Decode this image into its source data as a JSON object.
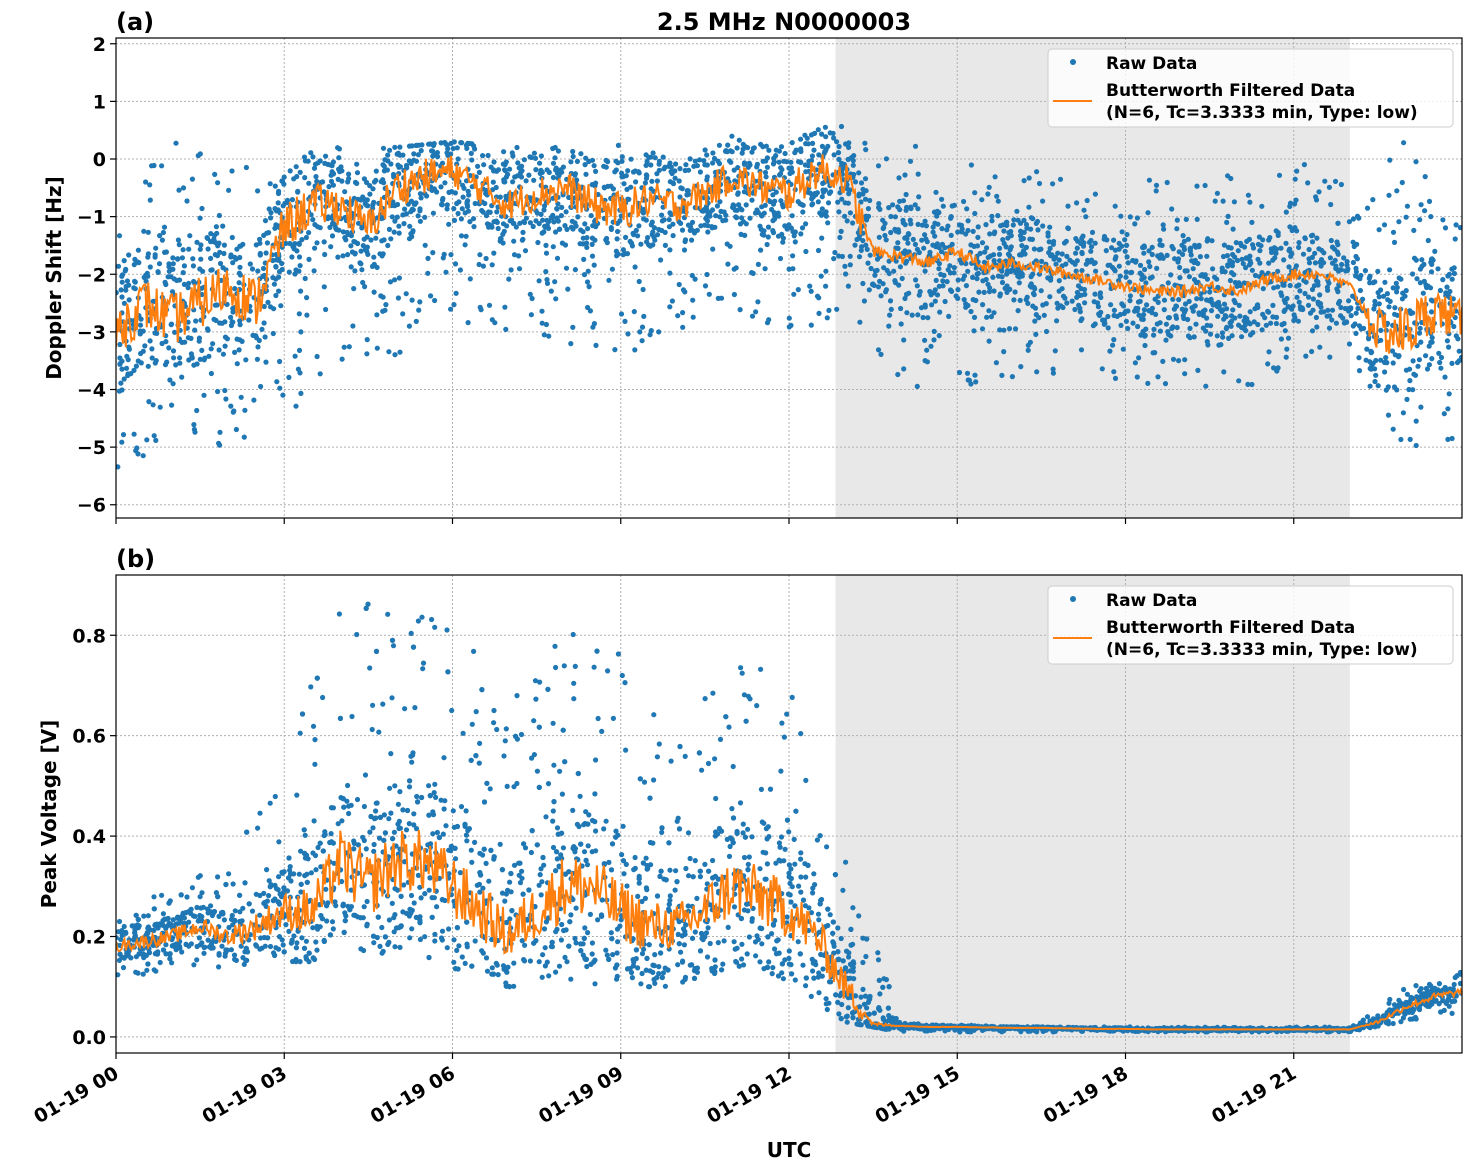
{
  "title": "2.5 MHz N0000003",
  "colors": {
    "raw": "#1f77b4",
    "filtered": "#ff7f0e",
    "shade": "#e8e8e8"
  },
  "chart_data": [
    {
      "type": "scatter",
      "panel_label": "(a)",
      "ylabel": "Doppler Shift [Hz]",
      "xlabel": "",
      "xlim_hours": [
        0,
        24
      ],
      "ylim": [
        -6.23,
        2.1
      ],
      "yticks": [
        2,
        1,
        0,
        -1,
        -2,
        -3,
        -4,
        -5,
        -6
      ],
      "ytick_labels": [
        "2",
        "1",
        "0",
        "−1",
        "−2",
        "−3",
        "−4",
        "−5",
        "−6"
      ],
      "grid": true,
      "shaded_span_hours": [
        12.83,
        22.0
      ],
      "legend": {
        "placement": "top-right",
        "raw": "Raw Data",
        "filtered_line1": "Butterworth Filtered Data",
        "filtered_line2": "(N=6, Tc=3.3333 min, Type: low)"
      },
      "filtered": {
        "t_hours_step": 0.5,
        "values": [
          -3,
          -2.5,
          -2.8,
          -2.5,
          -2.2,
          -2.5,
          -1.2,
          -0.8,
          -0.8,
          -1.2,
          -0.5,
          -0.3,
          -0.2,
          -0.5,
          -0.8,
          -0.6,
          -0.5,
          -0.8,
          -0.9,
          -0.7,
          -0.8,
          -0.6,
          -0.3,
          -0.5,
          -0.6,
          -0.2,
          -0.3,
          -1.6,
          -1.7,
          -1.8,
          -1.6,
          -1.9,
          -1.8,
          -1.9,
          -2.0,
          -2.1,
          -2.2,
          -2.3,
          -2.3,
          -2.2,
          -2.3,
          -2.1,
          -2.0,
          -2.0,
          -2.2,
          -3.0,
          -3.0,
          -2.6,
          -2.8
        ]
      },
      "raw_envelope": {
        "t_hours_step": 1,
        "min": [
          -5.5,
          -4.8,
          -5,
          -4.5,
          -3.5,
          -3.5,
          -2.8,
          -3,
          -3.2,
          -3.5,
          -3,
          -2.8,
          -3.3,
          -2.6,
          -4,
          -4,
          -3.8,
          -3.8,
          -3.9,
          -4,
          -4,
          -3.7,
          -3.5,
          -5.2,
          -4.8
        ],
        "max": [
          -0.5,
          0.3,
          0.1,
          0,
          0.3,
          0.2,
          0.3,
          0.2,
          0.2,
          0.3,
          0.2,
          0.4,
          0.3,
          0.7,
          0.4,
          0.2,
          0,
          -0.2,
          -0.3,
          -0.3,
          -0.2,
          0,
          -0.5,
          0.5,
          -1.2
        ]
      }
    },
    {
      "type": "scatter",
      "panel_label": "(b)",
      "ylabel": "Peak Voltage [V]",
      "xlabel": "UTC",
      "xlim_hours": [
        0,
        24
      ],
      "ylim": [
        -0.032,
        0.92
      ],
      "yticks": [
        0.8,
        0.6,
        0.4,
        0.2,
        0.0
      ],
      "ytick_labels": [
        "0.8",
        "0.6",
        "0.4",
        "0.2",
        "0.0"
      ],
      "grid": true,
      "shaded_span_hours": [
        12.83,
        22.0
      ],
      "legend": {
        "placement": "top-right",
        "raw": "Raw Data",
        "filtered_line1": "Butterworth Filtered Data",
        "filtered_line2": "(N=6, Tc=3.3333 min, Type: low)"
      },
      "filtered": {
        "t_hours_step": 0.5,
        "values": [
          0.18,
          0.19,
          0.2,
          0.22,
          0.2,
          0.22,
          0.25,
          0.25,
          0.35,
          0.3,
          0.35,
          0.35,
          0.3,
          0.25,
          0.2,
          0.25,
          0.3,
          0.3,
          0.25,
          0.22,
          0.22,
          0.25,
          0.3,
          0.28,
          0.25,
          0.2,
          0.1,
          0.025,
          0.022,
          0.02,
          0.02,
          0.019,
          0.018,
          0.018,
          0.017,
          0.016,
          0.016,
          0.015,
          0.015,
          0.015,
          0.015,
          0.015,
          0.015,
          0.015,
          0.015,
          0.03,
          0.06,
          0.08,
          0.09
        ]
      },
      "raw_envelope": {
        "t_hours_step": 1,
        "min": [
          0.12,
          0.13,
          0.14,
          0.15,
          0.15,
          0.16,
          0.13,
          0.1,
          0.11,
          0.1,
          0.1,
          0.1,
          0.08,
          0.03,
          0.01,
          0.01,
          0.01,
          0.01,
          0.01,
          0.01,
          0.01,
          0.01,
          0.01,
          0.03,
          0.05
        ],
        "max": [
          0.25,
          0.3,
          0.35,
          0.55,
          0.87,
          0.87,
          0.85,
          0.65,
          0.85,
          0.77,
          0.6,
          0.8,
          0.7,
          0.4,
          0.03,
          0.025,
          0.02,
          0.02,
          0.02,
          0.02,
          0.02,
          0.02,
          0.02,
          0.1,
          0.13
        ]
      }
    }
  ],
  "xaxis": {
    "tick_hours": [
      0,
      3,
      6,
      9,
      12,
      15,
      18,
      21
    ],
    "tick_labels": [
      "01-19 00",
      "01-19 03",
      "01-19 06",
      "01-19 09",
      "01-19 12",
      "01-19 15",
      "01-19 18",
      "01-19 21"
    ]
  }
}
